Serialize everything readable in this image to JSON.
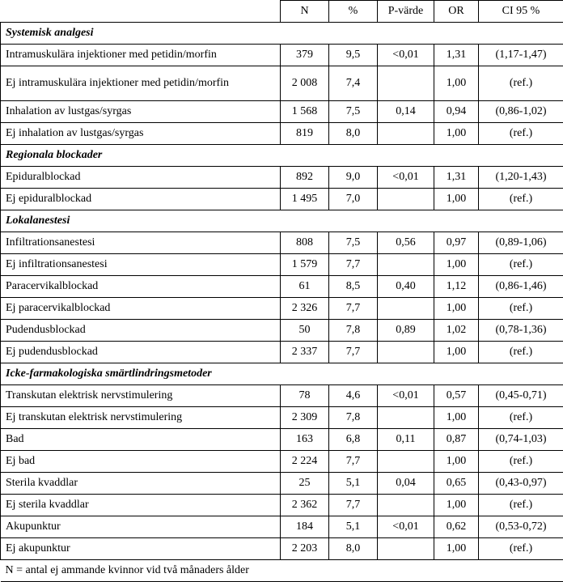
{
  "columns": {
    "n": "N",
    "pct": "%",
    "p": "P-värde",
    "or": "OR",
    "ci": "CI 95 %"
  },
  "thousand_sep": " ",
  "sections": [
    {
      "title": "Systemisk analgesi",
      "rows": [
        {
          "label": "Intramuskulära injektioner med petidin/morfin",
          "n": "379",
          "pct": "9,5",
          "p": "<0,01",
          "or": "1,31",
          "ci": "(1,17-1,47)"
        },
        {
          "label": "Ej intramuskulära injektioner med petidin/morfin",
          "tall": true,
          "n": "2 008",
          "pct": "7,4",
          "p": "",
          "or": "1,00",
          "ci": "(ref.)"
        },
        {
          "label": "Inhalation av lustgas/syrgas",
          "n": "1 568",
          "pct": "7,5",
          "p": "0,14",
          "or": "0,94",
          "ci": "(0,86-1,02)"
        },
        {
          "label": "Ej inhalation av lustgas/syrgas",
          "n": "819",
          "pct": "8,0",
          "p": "",
          "or": "1,00",
          "ci": "(ref.)"
        }
      ]
    },
    {
      "title": "Regionala blockader",
      "rows": [
        {
          "label": "Epiduralblockad",
          "n": "892",
          "pct": "9,0",
          "p": "<0,01",
          "or": "1,31",
          "ci": "(1,20-1,43)"
        },
        {
          "label": "Ej epiduralblockad",
          "n": "1 495",
          "pct": "7,0",
          "p": "",
          "or": "1,00",
          "ci": "(ref.)"
        }
      ]
    },
    {
      "title": "Lokalanestesi",
      "rows": [
        {
          "label": "Infiltrationsanestesi",
          "n": "808",
          "pct": "7,5",
          "p": "0,56",
          "or": "0,97",
          "ci": "(0,89-1,06)"
        },
        {
          "label": "Ej infiltrationsanestesi",
          "n": "1 579",
          "pct": "7,7",
          "p": "",
          "or": "1,00",
          "ci": "(ref.)"
        },
        {
          "label": "Paracervikalblockad",
          "n": "61",
          "pct": "8,5",
          "p": "0,40",
          "or": "1,12",
          "ci": "(0,86-1,46)"
        },
        {
          "label": "Ej paracervikalblockad",
          "n": "2 326",
          "pct": "7,7",
          "p": "",
          "or": "1,00",
          "ci": "(ref.)"
        },
        {
          "label": "Pudendusblockad",
          "n": "50",
          "pct": "7,8",
          "p": "0,89",
          "or": "1,02",
          "ci": "(0,78-1,36)"
        },
        {
          "label": "Ej pudendusblockad",
          "n": "2 337",
          "pct": "7,7",
          "p": "",
          "or": "1,00",
          "ci": "(ref.)"
        }
      ]
    },
    {
      "title": "Icke-farmakologiska smärtlindringsmetoder",
      "rows": [
        {
          "label": "Transkutan elektrisk nervstimulering",
          "n": "78",
          "pct": "4,6",
          "p": "<0,01",
          "or": "0,57",
          "ci": "(0,45-0,71)"
        },
        {
          "label": "Ej transkutan elektrisk nervstimulering",
          "n": "2 309",
          "pct": "7,8",
          "p": "",
          "or": "1,00",
          "ci": "(ref.)"
        },
        {
          "label": "Bad",
          "n": "163",
          "pct": "6,8",
          "p": "0,11",
          "or": "0,87",
          "ci": "(0,74-1,03)"
        },
        {
          "label": "Ej bad",
          "n": "2 224",
          "pct": "7,7",
          "p": "",
          "or": "1,00",
          "ci": "(ref.)"
        },
        {
          "label": "Sterila kvaddlar",
          "n": "25",
          "pct": "5,1",
          "p": "0,04",
          "or": "0,65",
          "ci": "(0,43-0,97)"
        },
        {
          "label": "Ej sterila kvaddlar",
          "n": "2 362",
          "pct": "7,7",
          "p": "",
          "or": "1,00",
          "ci": "(ref.)"
        },
        {
          "label": "Akupunktur",
          "n": "184",
          "pct": "5,1",
          "p": "<0,01",
          "or": "0,62",
          "ci": "(0,53-0,72)"
        },
        {
          "label": "Ej akupunktur",
          "n": "2 203",
          "pct": "8,0",
          "p": "",
          "or": "1,00",
          "ci": "(ref.)"
        }
      ]
    }
  ],
  "footer": "N = antal ej ammande kvinnor vid två månaders ålder"
}
